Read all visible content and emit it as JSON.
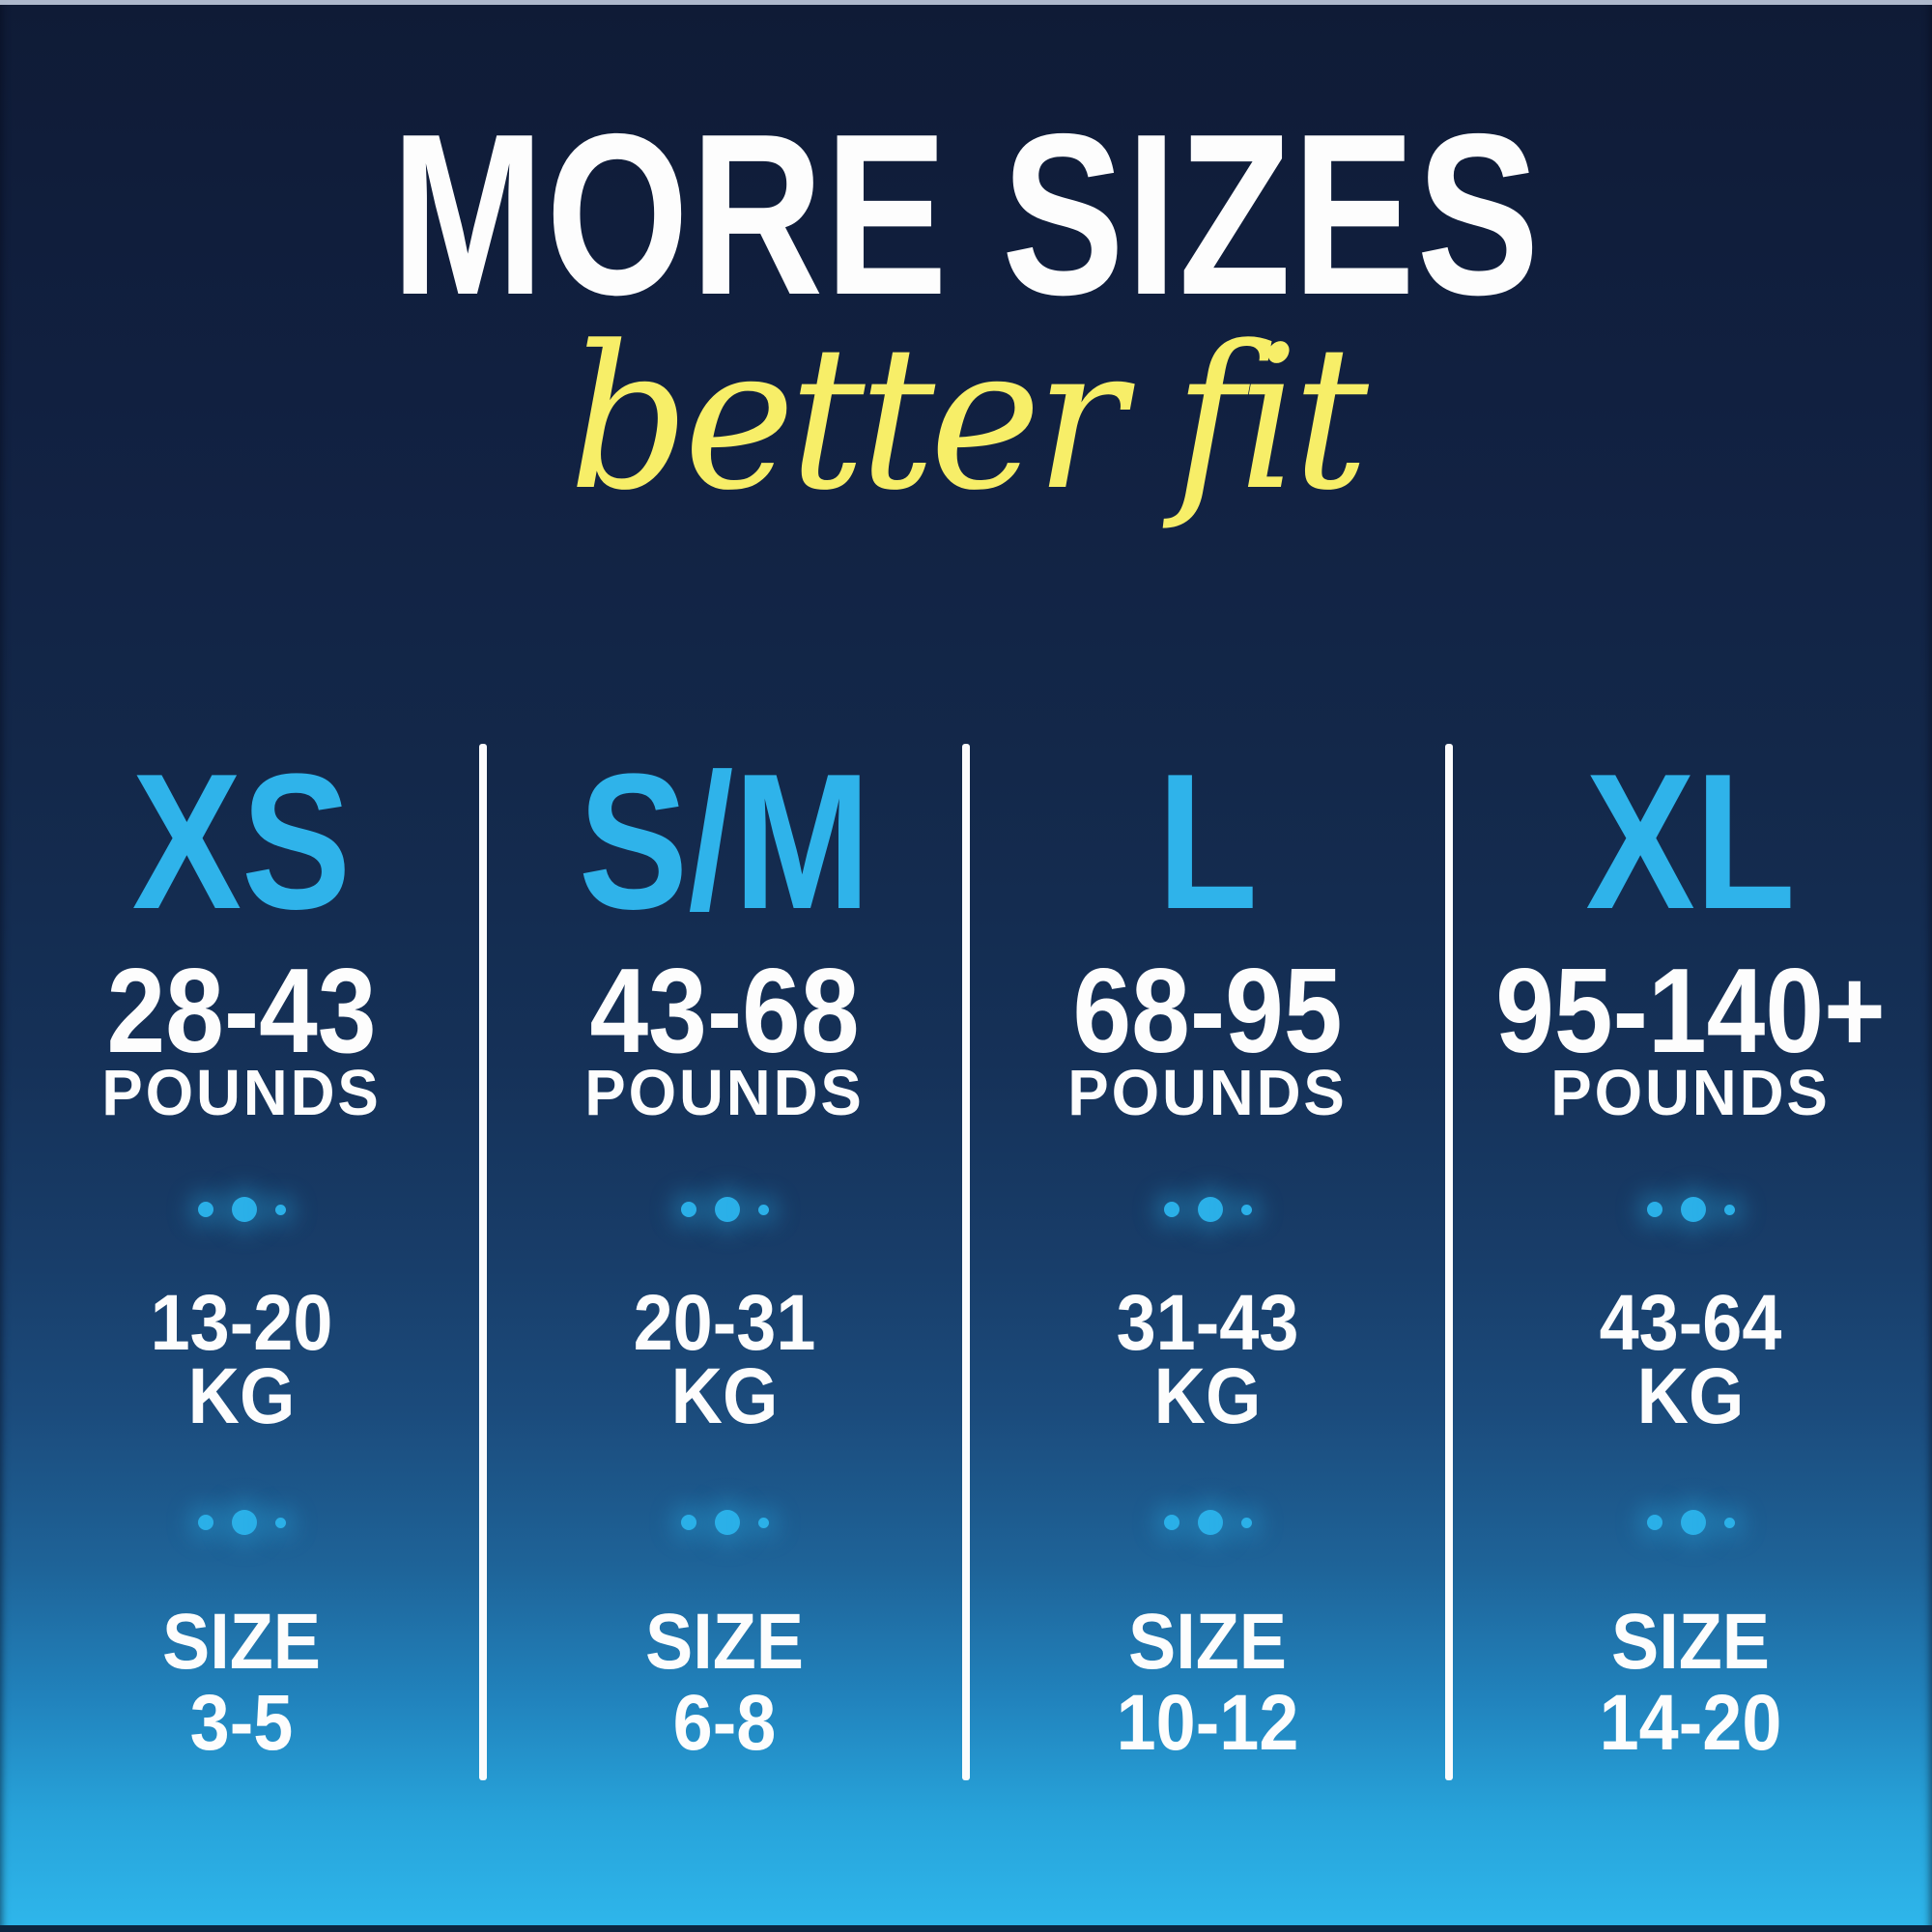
{
  "title": "MORE SIZES",
  "subtitle": "better fit",
  "units": {
    "pounds": "POUNDS",
    "kg": "KG",
    "size": "SIZE"
  },
  "columns": [
    {
      "id": "xs",
      "label": "XS",
      "pounds": "28-43",
      "kg": "13-20",
      "size": "3-5"
    },
    {
      "id": "sm",
      "label": "S/M",
      "pounds": "43-68",
      "kg": "20-31",
      "size": "6-8"
    },
    {
      "id": "l",
      "label": "L",
      "pounds": "68-95",
      "kg": "31-43",
      "size": "10-12"
    },
    {
      "id": "xl",
      "label": "XL",
      "pounds": "95-140+",
      "kg": "43-64",
      "size": "14-20"
    }
  ],
  "colors": {
    "accent_cyan": "#2fb3ea",
    "accent_yellow": "#f7ee68",
    "text_white": "#fdfdfd",
    "bg_top_navy": "#0f1b36",
    "bg_bottom_blue": "#2eb5ea",
    "divider_white": "#fcfcfd"
  },
  "chart_data": {
    "type": "table",
    "title": "MORE SIZES",
    "subtitle": "better fit",
    "columns": [
      "XS",
      "S/M",
      "L",
      "XL"
    ],
    "rows": [
      {
        "label": "POUNDS",
        "values": [
          "28-43",
          "43-68",
          "68-95",
          "95-140+"
        ]
      },
      {
        "label": "KG",
        "values": [
          "13-20",
          "20-31",
          "31-43",
          "43-64"
        ]
      },
      {
        "label": "SIZE",
        "values": [
          "3-5",
          "6-8",
          "10-12",
          "14-20"
        ]
      }
    ]
  }
}
